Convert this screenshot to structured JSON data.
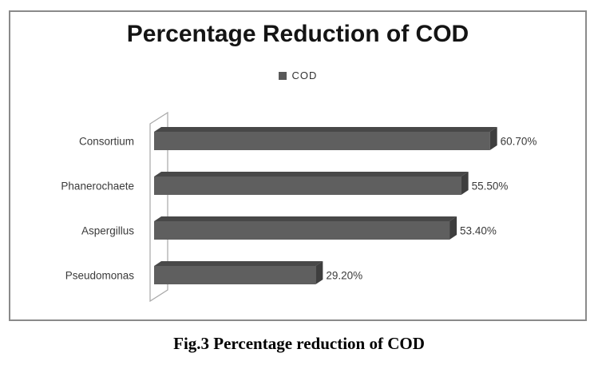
{
  "figure": {
    "caption": "Fig.3 Percentage reduction of COD"
  },
  "chart_data": {
    "type": "bar",
    "orientation": "horizontal",
    "style": "3d",
    "title": "Percentage Reduction of COD",
    "legend": {
      "label": "COD",
      "swatch_color": "#595959",
      "position": "top-center"
    },
    "categories": [
      "Consortium",
      "Phanerochaete",
      "Aspergillus",
      "Pseudomonas"
    ],
    "series": [
      {
        "name": "COD",
        "values": [
          60.7,
          55.5,
          53.4,
          29.2
        ]
      }
    ],
    "value_labels": [
      "60.70%",
      "55.50%",
      "53.40%",
      "29.20%"
    ],
    "x_axis_visible": false,
    "grid": false,
    "colors": {
      "bar_front": "#5f5f5f",
      "bar_top": "#484848",
      "bar_side": "#3e3e3e",
      "wall_stroke": "#a8a8a8",
      "frame_border": "#8a8a8a",
      "label_text": "#3a3a3a",
      "title_text": "#141414"
    }
  }
}
